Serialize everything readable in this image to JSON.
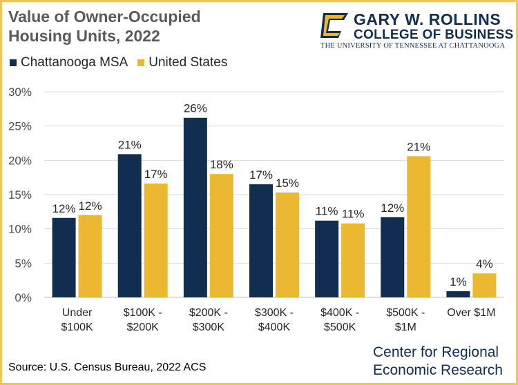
{
  "header": {
    "title": "Value of Owner-Occupied Housing Units, 2022"
  },
  "logo": {
    "line1": "GARY W. ROLLINS",
    "line2": "COLLEGE OF BUSINESS",
    "line3": "THE UNIVERSITY OF TENNESSEE AT CHATTANOOGA",
    "icon": "utc-c-logo-icon",
    "colors": {
      "navy": "#112e51",
      "gold": "#ecb731"
    }
  },
  "footer": {
    "source": "Source: U.S. Census Bureau, 2022 ACS",
    "credit_line1": "Center for Regional",
    "credit_line2": "Economic Research"
  },
  "chart_data": {
    "type": "bar",
    "title": "Value of Owner-Occupied Housing Units, 2022",
    "xlabel": "",
    "ylabel": "",
    "ylim": [
      0,
      30
    ],
    "yticks": [
      0,
      5,
      10,
      15,
      20,
      25,
      30
    ],
    "ytick_labels": [
      "0%",
      "5%",
      "10%",
      "15%",
      "20%",
      "25%",
      "30%"
    ],
    "grid": "horizontal",
    "legend": "top-left",
    "categories": [
      [
        "Under",
        "$100K"
      ],
      [
        "$100K -",
        "$200K"
      ],
      [
        "$200K -",
        "$300K"
      ],
      [
        "$300K -",
        "$400K"
      ],
      [
        "$400K -",
        "$500K"
      ],
      [
        "$500K -",
        "$1M"
      ],
      [
        "Over $1M"
      ]
    ],
    "series": [
      {
        "name": "Chattanooga MSA",
        "color": "#112e51",
        "values": [
          11.6,
          20.9,
          26.2,
          16.5,
          11.2,
          11.7,
          0.9
        ],
        "labels": [
          "12%",
          "21%",
          "26%",
          "17%",
          "11%",
          "12%",
          "1%"
        ]
      },
      {
        "name": "United States",
        "color": "#ecb731",
        "values": [
          12.0,
          16.6,
          18.0,
          15.3,
          10.8,
          20.6,
          3.5
        ],
        "labels": [
          "12%",
          "17%",
          "18%",
          "15%",
          "11%",
          "21%",
          "4%"
        ]
      }
    ]
  }
}
